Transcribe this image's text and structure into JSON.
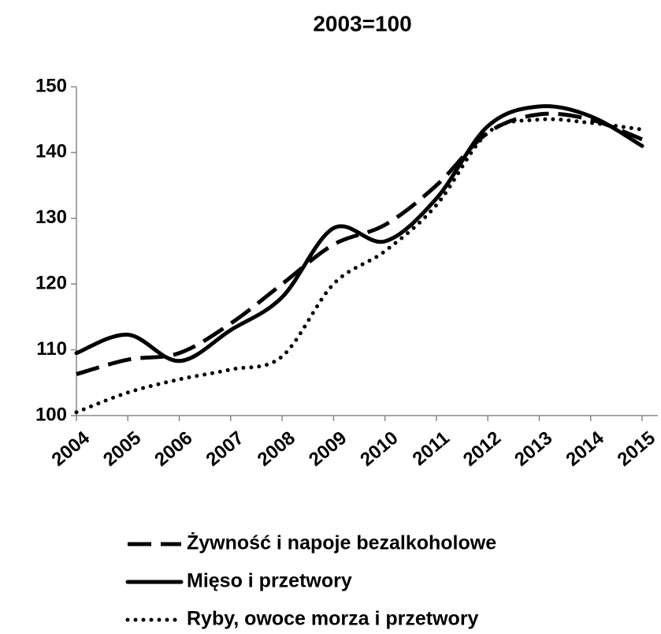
{
  "chart_data": {
    "type": "line",
    "title": "2003=100",
    "categories": [
      "2004",
      "2005",
      "2006",
      "2007",
      "2008",
      "2009",
      "2010",
      "2011",
      "2012",
      "2013",
      "2014",
      "2015"
    ],
    "series": [
      {
        "name": "Żywność i napoje bezalkoholowe",
        "color": "#000000",
        "dash": "dashed",
        "values": [
          106.3,
          108.5,
          109.5,
          114,
          120,
          126,
          129,
          135,
          143,
          145.8,
          145,
          142
        ]
      },
      {
        "name": "Mięso i przetwory",
        "color": "#000000",
        "dash": "solid",
        "values": [
          109.5,
          112.3,
          108.3,
          113,
          118,
          128.5,
          126.5,
          133,
          144,
          147,
          145.5,
          141
        ]
      },
      {
        "name": "Ryby, owoce morza i przetwory",
        "color": "#000000",
        "dash": "dotted",
        "values": [
          100.5,
          103.5,
          105.5,
          107,
          109,
          120,
          125,
          132,
          143,
          145,
          144.5,
          143.5
        ]
      }
    ],
    "ylim": [
      100,
      150
    ],
    "yticks": [
      100,
      110,
      120,
      130,
      140,
      150
    ],
    "grid": false
  }
}
